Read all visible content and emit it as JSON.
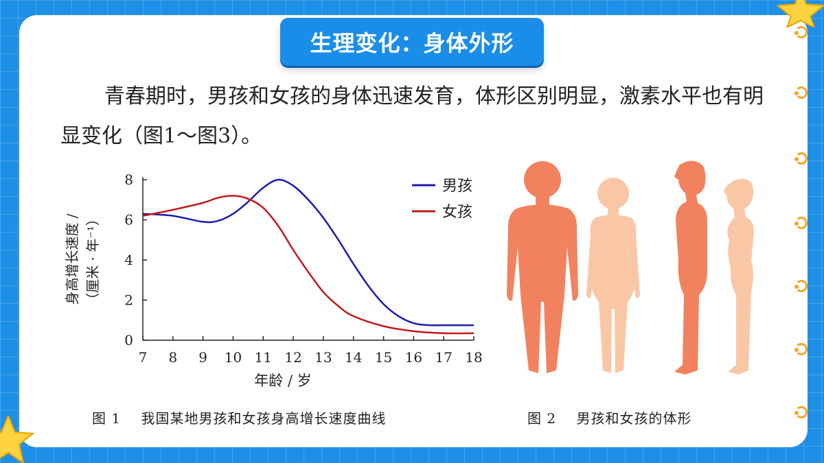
{
  "slide": {
    "title": "生理变化：身体外形",
    "paragraph": "青春期时，男孩和女孩的身体迅速发育，体形区别明显，激素水平也有明显变化（图1～图3）。"
  },
  "figure1": {
    "caption": "图 1    我国某地男孩和女孩身高增长速度曲线"
  },
  "figure2": {
    "caption": "图 2    男孩和女孩的体形"
  },
  "colors": {
    "boy": "#1a1ab0",
    "girl": "#c0181c",
    "boy_figure": "#f2825f",
    "girl_figure": "#f9c7a6",
    "accent": "#1a8de9"
  },
  "chart_data": {
    "type": "line",
    "xlabel": "年龄 / 岁",
    "ylabel_line1": "身高增长速度 /",
    "ylabel_line2": "（厘米 · 年⁻¹）",
    "x_ticks": [
      7,
      8,
      9,
      10,
      11,
      12,
      13,
      14,
      15,
      16,
      17,
      18
    ],
    "y_ticks": [
      0,
      2,
      4,
      6,
      8
    ],
    "xlim": [
      7,
      18
    ],
    "ylim": [
      0,
      8
    ],
    "legend_position": "top-right",
    "series": [
      {
        "name": "男孩",
        "color": "#1a1ab0",
        "x": [
          7,
          8,
          9,
          9.5,
          10,
          10.5,
          11,
          11.5,
          12,
          12.5,
          13,
          13.5,
          14,
          14.5,
          15,
          15.5,
          16,
          16.5,
          17,
          18
        ],
        "y": [
          6.3,
          6.2,
          5.9,
          5.95,
          6.3,
          6.9,
          7.6,
          8.0,
          7.7,
          7.0,
          6.1,
          5.0,
          3.8,
          2.7,
          1.8,
          1.2,
          0.85,
          0.75,
          0.75,
          0.75
        ]
      },
      {
        "name": "女孩",
        "color": "#c0181c",
        "x": [
          7,
          8,
          9,
          9.5,
          10,
          10.5,
          11,
          11.5,
          12,
          12.5,
          13,
          13.5,
          14,
          15,
          16,
          17,
          18
        ],
        "y": [
          6.2,
          6.5,
          6.85,
          7.1,
          7.2,
          7.05,
          6.6,
          5.7,
          4.5,
          3.4,
          2.4,
          1.7,
          1.2,
          0.7,
          0.45,
          0.35,
          0.35
        ]
      }
    ]
  }
}
